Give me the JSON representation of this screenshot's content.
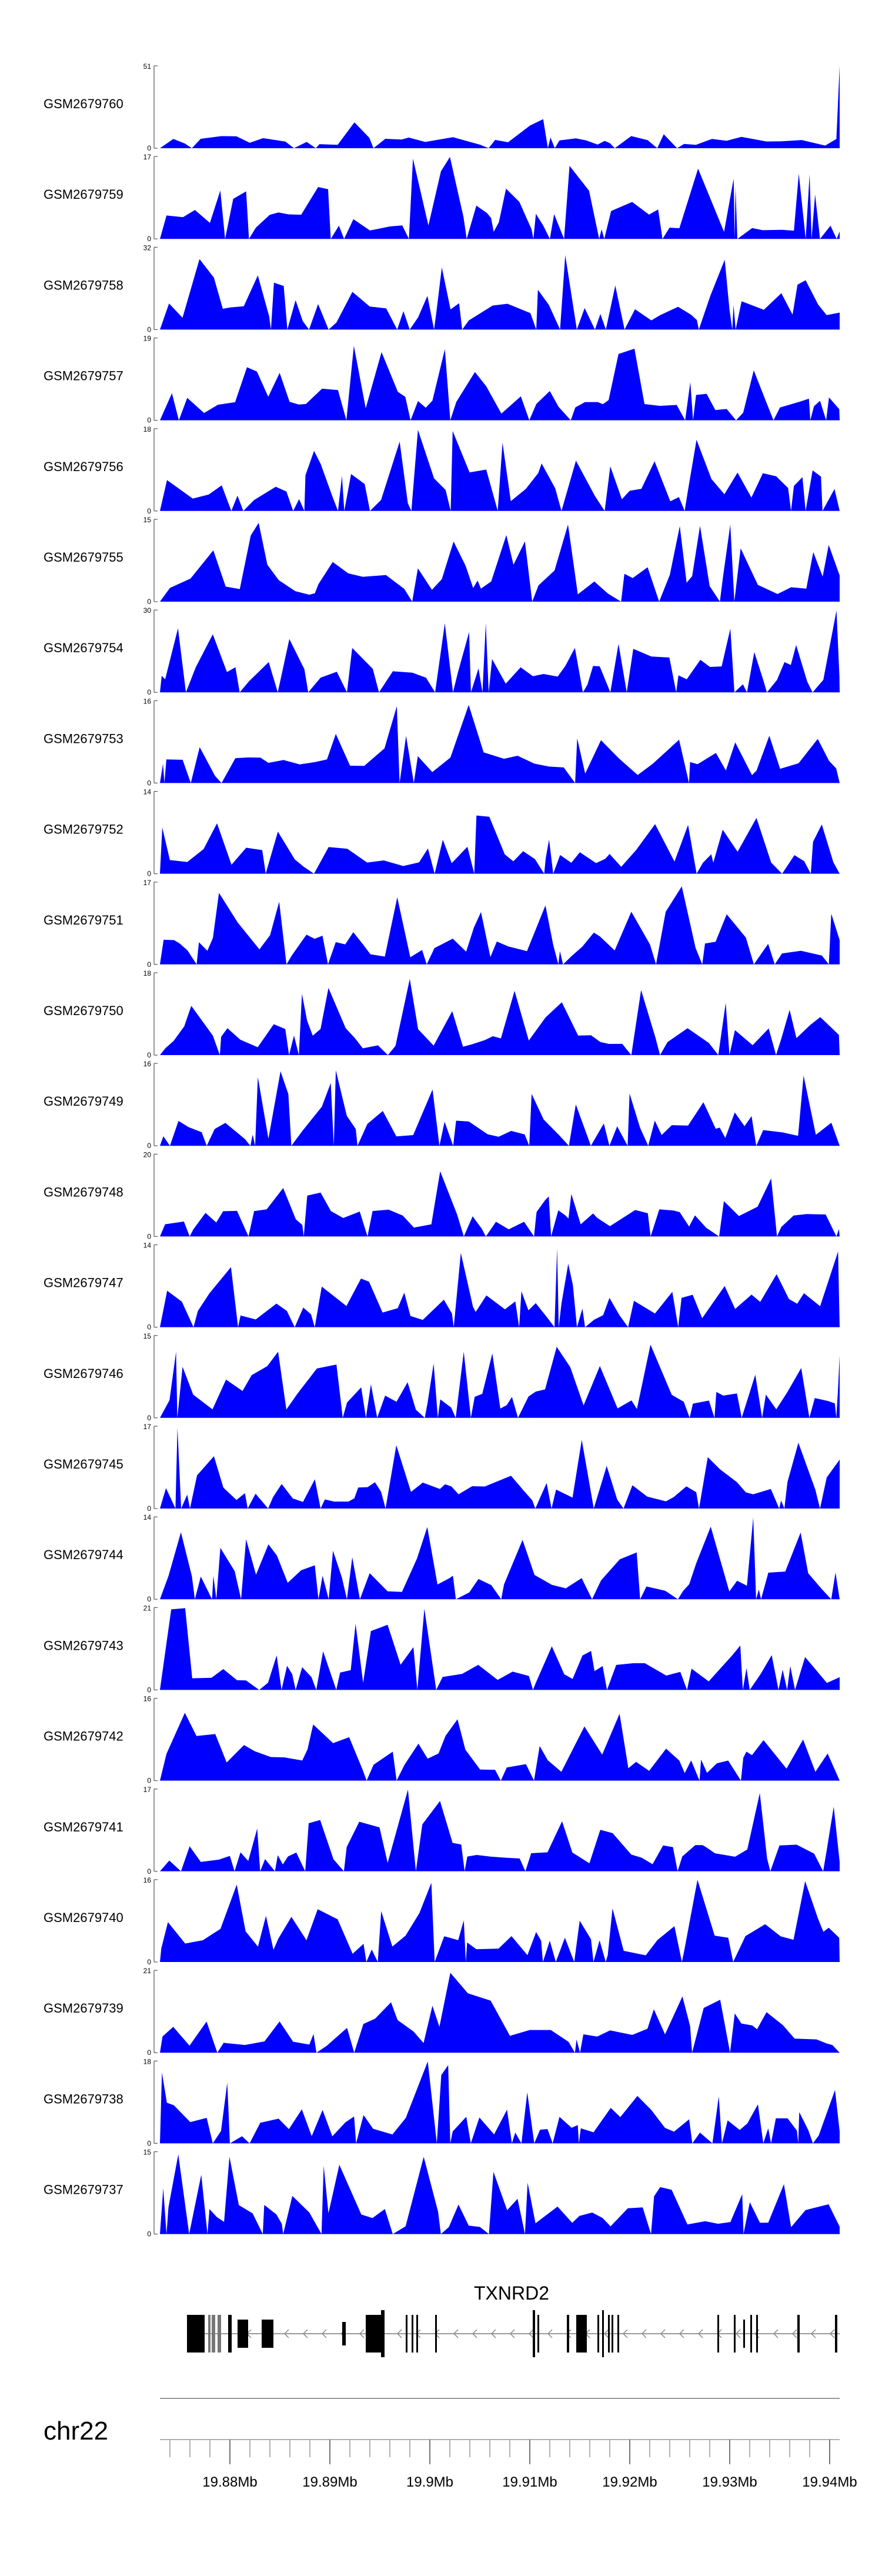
{
  "chart_data": {
    "type": "area",
    "title": "",
    "chromosome": "chr22",
    "gene": {
      "name": "TXNRD2",
      "strand": "-"
    },
    "x_axis": {
      "ticks": [
        "19.88Mb",
        "19.89Mb",
        "19.9Mb",
        "19.91Mb",
        "19.92Mb",
        "19.93Mb",
        "19.94Mb"
      ],
      "tick_positions_mb": [
        19.88,
        19.89,
        19.9,
        19.91,
        19.92,
        19.93,
        19.94
      ],
      "xlim_mb": [
        19.873,
        19.941
      ]
    },
    "tracks": [
      {
        "name": "GSM2679760",
        "ymax": 51,
        "ymin": 0
      },
      {
        "name": "GSM2679759",
        "ymax": 17,
        "ymin": 0
      },
      {
        "name": "GSM2679758",
        "ymax": 32,
        "ymin": 0
      },
      {
        "name": "GSM2679757",
        "ymax": 19,
        "ymin": 0
      },
      {
        "name": "GSM2679756",
        "ymax": 18,
        "ymin": 0
      },
      {
        "name": "GSM2679755",
        "ymax": 15,
        "ymin": 0
      },
      {
        "name": "GSM2679754",
        "ymax": 30,
        "ymin": 0
      },
      {
        "name": "GSM2679753",
        "ymax": 16,
        "ymin": 0
      },
      {
        "name": "GSM2679752",
        "ymax": 14,
        "ymin": 0
      },
      {
        "name": "GSM2679751",
        "ymax": 17,
        "ymin": 0
      },
      {
        "name": "GSM2679750",
        "ymax": 18,
        "ymin": 0
      },
      {
        "name": "GSM2679749",
        "ymax": 16,
        "ymin": 0
      },
      {
        "name": "GSM2679748",
        "ymax": 20,
        "ymin": 0
      },
      {
        "name": "GSM2679747",
        "ymax": 14,
        "ymin": 0
      },
      {
        "name": "GSM2679746",
        "ymax": 15,
        "ymin": 0
      },
      {
        "name": "GSM2679745",
        "ymax": 17,
        "ymin": 0
      },
      {
        "name": "GSM2679744",
        "ymax": 14,
        "ymin": 0
      },
      {
        "name": "GSM2679743",
        "ymax": 21,
        "ymin": 0
      },
      {
        "name": "GSM2679742",
        "ymax": 16,
        "ymin": 0
      },
      {
        "name": "GSM2679741",
        "ymax": 17,
        "ymin": 0
      },
      {
        "name": "GSM2679740",
        "ymax": 16,
        "ymin": 0
      },
      {
        "name": "GSM2679739",
        "ymax": 21,
        "ymin": 0
      },
      {
        "name": "GSM2679738",
        "ymax": 18,
        "ymin": 0
      },
      {
        "name": "GSM2679737",
        "ymax": 15,
        "ymin": 0
      }
    ],
    "fill_color": "#0000ff"
  }
}
